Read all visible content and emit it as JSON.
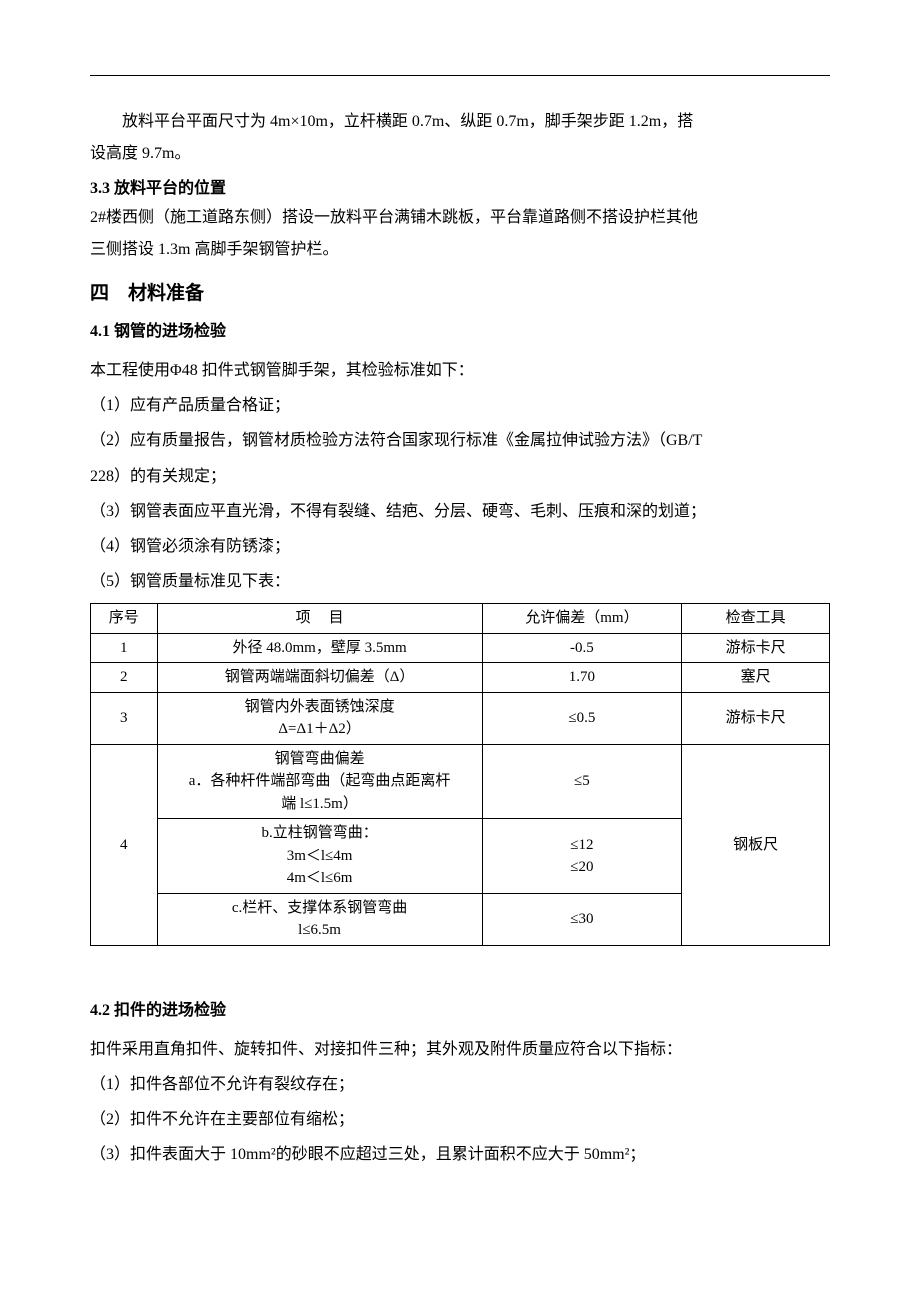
{
  "hr_color": "#000000",
  "body": {
    "para1_a": "放料平台平面尺寸为 4m×10m，立杆横距 0.7m、纵距 0.7m，脚手架步距 1.2m，搭",
    "para1_b": "设高度 9.7m。"
  },
  "section3_3": {
    "heading": "3.3  放料平台的位置",
    "line1": "2#楼西侧（施工道路东侧）搭设一放料平台满铺木跳板，平台靠道路侧不搭设护栏其他",
    "line2": "三侧搭设 1.3m 高脚手架钢管护栏。"
  },
  "section4": {
    "heading": "四　材料准备"
  },
  "section4_1": {
    "heading": "4.1  钢管的进场检验",
    "intro": "本工程使用Φ48 扣件式钢管脚手架，其检验标准如下：",
    "item1": "（1）应有产品质量合格证；",
    "item2a": "（2）应有质量报告，钢管材质检验方法符合国家现行标准《金属拉伸试验方法》（GB/T",
    "item2b": "228）的有关规定；",
    "item3": "（3）钢管表面应平直光滑，不得有裂缝、结疤、分层、硬弯、毛刺、压痕和深的划道；",
    "item4": "（4）钢管必须涂有防锈漆；",
    "item5": "（5）钢管质量标准见下表："
  },
  "table": {
    "headers": {
      "seq": "序号",
      "item": "项　目",
      "tolerance": "允许偏差（mm）",
      "tool": "检查工具"
    },
    "rows": {
      "r1": {
        "seq": "1",
        "item": "外径 48.0mm，壁厚 3.5mm",
        "tol": "-0.5",
        "tool": "游标卡尺"
      },
      "r2": {
        "seq": "2",
        "item": "钢管两端端面斜切偏差（Δ）",
        "tol": "1.70",
        "tool": "塞尺"
      },
      "r3": {
        "seq": "3",
        "item_l1": "钢管内外表面锈蚀深度",
        "item_l2": "Δ=Δ1＋Δ2）",
        "tol": "≤0.5",
        "tool": "游标卡尺"
      },
      "r4": {
        "seq": "4",
        "a_l1": "钢管弯曲偏差",
        "a_l2": "a．各种杆件端部弯曲（起弯曲点距离杆",
        "a_l3": "端 l≤1.5m）",
        "a_tol": "≤5",
        "b_l1": "b.立柱钢管弯曲：",
        "b_l2": "3m＜l≤4m",
        "b_l3": "4m＜l≤6m",
        "b_tol_l1": "≤12",
        "b_tol_l2": "≤20",
        "c_l1": "c.栏杆、支撑体系钢管弯曲",
        "c_l2": "l≤6.5m",
        "c_tol": "≤30",
        "tool": "钢板尺"
      }
    }
  },
  "section4_2": {
    "heading": "4.2  扣件的进场检验",
    "intro": "扣件采用直角扣件、旋转扣件、对接扣件三种；其外观及附件质量应符合以下指标：",
    "item1": "（1）扣件各部位不允许有裂纹存在；",
    "item2": "（2）扣件不允许在主要部位有缩松；",
    "item3": "（3）扣件表面大于 10mm²的砂眼不应超过三处，且累计面积不应大于 50mm²；"
  }
}
